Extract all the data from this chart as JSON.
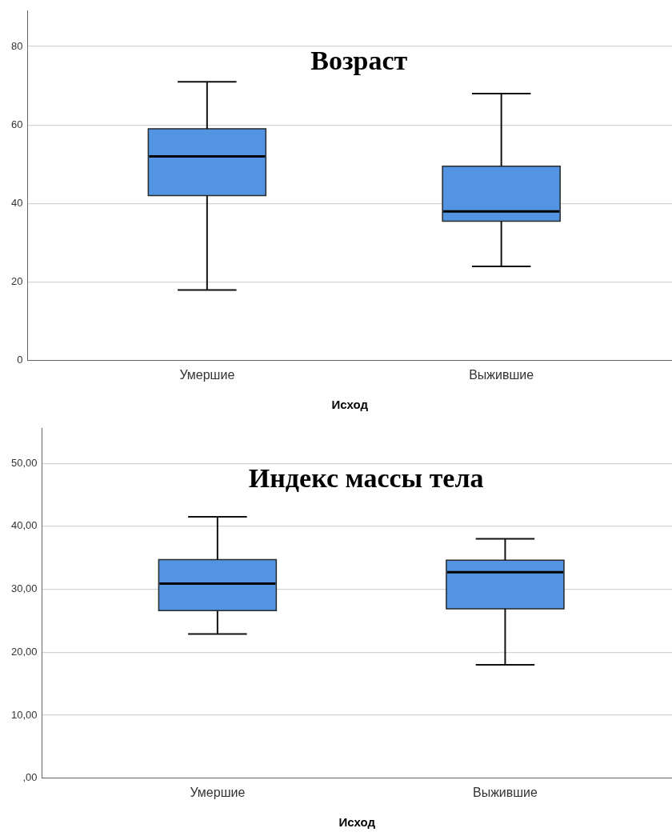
{
  "chart_data": [
    {
      "type": "box",
      "title": "Возраст",
      "xlabel": "Исход",
      "categories": [
        "Умершие",
        "Выжившие"
      ],
      "color": "#5294e2",
      "boxes": [
        {
          "low": 18,
          "q1": 42,
          "median": 52,
          "q3": 59,
          "high": 71
        },
        {
          "low": 24,
          "q1": 35.5,
          "median": 38,
          "q3": 49.5,
          "high": 68
        }
      ],
      "ylim": [
        0,
        89
      ],
      "yticks": [
        0,
        20,
        40,
        60,
        80
      ],
      "grid": "y"
    },
    {
      "type": "box",
      "title": "Индекс массы тела",
      "xlabel": "Исход",
      "categories": [
        "Умершие",
        "Выжившие"
      ],
      "color": "#5294e2",
      "boxes": [
        {
          "low": 22.9,
          "q1": 26.6,
          "median": 30.9,
          "q3": 34.7,
          "high": 41.5
        },
        {
          "low": 18,
          "q1": 26.9,
          "median": 32.7,
          "q3": 34.6,
          "high": 38
        }
      ],
      "ylim": [
        0,
        55.5
      ],
      "yticks": [
        {
          "value": 0,
          "label": ",00"
        },
        {
          "value": 10,
          "label": "10,00"
        },
        {
          "value": 20,
          "label": "20,00"
        },
        {
          "value": 30,
          "label": "30,00"
        },
        {
          "value": 40,
          "label": "40,00"
        },
        {
          "value": 50,
          "label": "50,00"
        }
      ],
      "grid": "y"
    }
  ]
}
